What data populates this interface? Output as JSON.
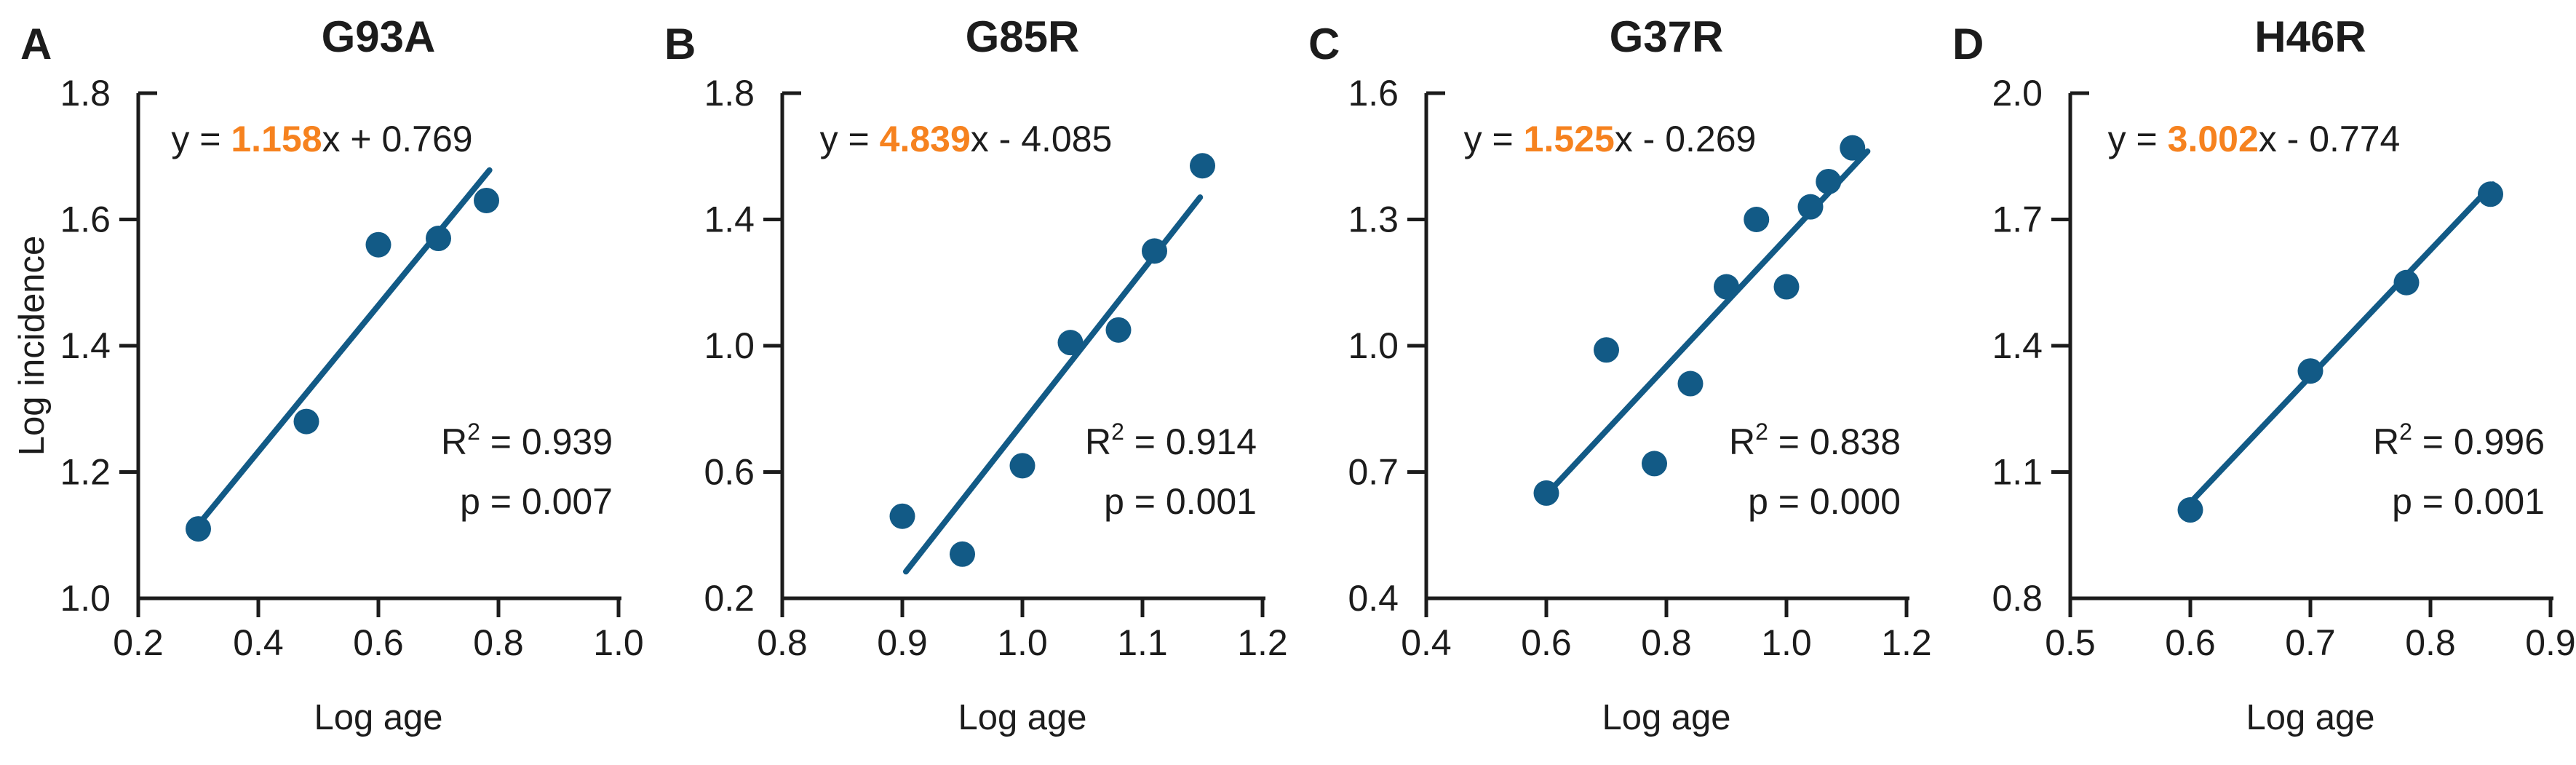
{
  "figure": {
    "ylabel": "Log incidence",
    "xlabel": "Log age"
  },
  "colors": {
    "point_blue": "#125a86",
    "trend_blue": "#125a86",
    "accent_orange": "#f6821f",
    "axis_color": "#1c1c1c",
    "background": "#ffffff"
  },
  "chart_data": [
    {
      "type": "scatter",
      "panel_letter": "A",
      "title": "G93A",
      "eq_prefix": "y = ",
      "eq_slope": "1.158",
      "eq_suffix": "x + 0.769",
      "slope": 1.158,
      "intercept": 0.769,
      "r2_base": "R",
      "r2_sup": "2",
      "r2_rest": " = 0.939",
      "r_squared": "0.939",
      "p_text": "p = 0.007",
      "p_value": "0.007",
      "xlabel": "Log age",
      "show_ylabel": true,
      "xlim": [
        0.2,
        1.0
      ],
      "ylim": [
        1.0,
        1.8
      ],
      "xticks": [
        "0.2",
        "0.4",
        "0.6",
        "0.8",
        "1.0"
      ],
      "yticks": [
        "1.0",
        "1.2",
        "1.4",
        "1.6",
        "1.8"
      ],
      "points": [
        [
          0.3,
          1.11
        ],
        [
          0.48,
          1.28
        ],
        [
          0.6,
          1.56
        ],
        [
          0.7,
          1.57
        ],
        [
          0.78,
          1.63
        ]
      ],
      "trend": {
        "x1": 0.3,
        "x2": 0.785
      },
      "legend": "none",
      "grid": "off"
    },
    {
      "type": "scatter",
      "panel_letter": "B",
      "title": "G85R",
      "eq_prefix": "y = ",
      "eq_slope": "4.839",
      "eq_suffix": "x - 4.085",
      "slope": 4.839,
      "intercept": -4.085,
      "r2_base": "R",
      "r2_sup": "2",
      "r2_rest": " = 0.914",
      "r_squared": "0.914",
      "p_text": "p = 0.001",
      "p_value": "0.001",
      "xlabel": "Log age",
      "show_ylabel": false,
      "xlim": [
        0.8,
        1.2
      ],
      "ylim": [
        0.2,
        1.8
      ],
      "xticks": [
        "0.8",
        "0.9",
        "1.0",
        "1.1",
        "1.2"
      ],
      "yticks": [
        "0.2",
        "0.6",
        "1.0",
        "1.4",
        "1.8"
      ],
      "points": [
        [
          0.9,
          0.46
        ],
        [
          0.95,
          0.34
        ],
        [
          1.0,
          0.62
        ],
        [
          1.04,
          1.01
        ],
        [
          1.08,
          1.05
        ],
        [
          1.11,
          1.3
        ],
        [
          1.15,
          1.57
        ]
      ],
      "trend": {
        "x1": 0.903,
        "x2": 1.148
      },
      "legend": "none",
      "grid": "off"
    },
    {
      "type": "scatter",
      "panel_letter": "C",
      "title": "G37R",
      "eq_prefix": "y = ",
      "eq_slope": "1.525",
      "eq_suffix": "x - 0.269",
      "slope": 1.525,
      "intercept": -0.269,
      "r2_base": "R",
      "r2_sup": "2",
      "r2_rest": " = 0.838",
      "r_squared": "0.838",
      "p_text": "p = 0.000",
      "p_value": "0.000",
      "xlabel": "Log age",
      "show_ylabel": false,
      "xlim": [
        0.4,
        1.2
      ],
      "ylim": [
        0.4,
        1.6
      ],
      "xticks": [
        "0.4",
        "0.6",
        "0.8",
        "1.0",
        "1.2"
      ],
      "yticks": [
        "0.4",
        "0.7",
        "1.0",
        "1.3",
        "1.6"
      ],
      "points": [
        [
          0.6,
          0.65
        ],
        [
          0.7,
          0.99
        ],
        [
          0.78,
          0.72
        ],
        [
          0.84,
          0.91
        ],
        [
          0.9,
          1.14
        ],
        [
          0.95,
          1.3
        ],
        [
          1.0,
          1.14
        ],
        [
          1.04,
          1.33
        ],
        [
          1.07,
          1.39
        ],
        [
          1.11,
          1.47
        ]
      ],
      "trend": {
        "x1": 0.605,
        "x2": 1.135
      },
      "legend": "none",
      "grid": "off"
    },
    {
      "type": "scatter",
      "panel_letter": "D",
      "title": "H46R",
      "eq_prefix": "y = ",
      "eq_slope": "3.002",
      "eq_suffix": "x - 0.774",
      "slope": 3.002,
      "intercept": -0.774,
      "r2_base": "R",
      "r2_sup": "2",
      "r2_rest": " = 0.996",
      "r_squared": "0.996",
      "p_text": "p = 0.001",
      "p_value": "0.001",
      "xlabel": "Log age",
      "show_ylabel": false,
      "xlim": [
        0.5,
        0.9
      ],
      "ylim": [
        0.8,
        2.0
      ],
      "xticks": [
        "0.5",
        "0.6",
        "0.7",
        "0.8",
        "0.9"
      ],
      "yticks": [
        "0.8",
        "1.1",
        "1.4",
        "1.7",
        "2.0"
      ],
      "points": [
        [
          0.6,
          1.01
        ],
        [
          0.7,
          1.34
        ],
        [
          0.78,
          1.55
        ],
        [
          0.85,
          1.76
        ]
      ],
      "trend": {
        "x1": 0.603,
        "x2": 0.852
      },
      "legend": "none",
      "grid": "off"
    }
  ]
}
